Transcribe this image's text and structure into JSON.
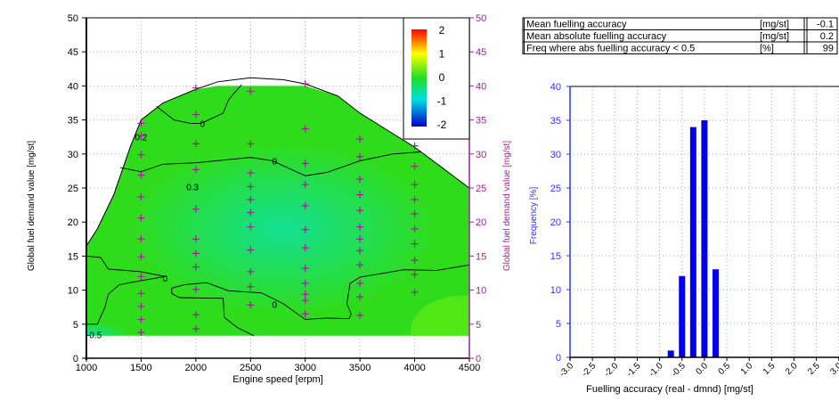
{
  "stats_table": {
    "rows": [
      {
        "label": "Mean fuelling accuracy",
        "unit": "[mg/st]",
        "value": "-0.1"
      },
      {
        "label": "Mean absolute fuelling accuracy",
        "unit": "[mg/st]",
        "value": "0.2"
      },
      {
        "label": "Freq where abs fuelling accuracy < 0.5",
        "unit": "[%]",
        "value": "99"
      }
    ]
  },
  "chart_data": [
    {
      "type": "heatmap",
      "xlabel": "Engine speed [erpm]",
      "ylabel": "Global fuel demand value [mg/st]",
      "ylabel_right": "Global fuel demand value [mg/st]",
      "xlim": [
        1000,
        4500
      ],
      "ylim": [
        0,
        50
      ],
      "xticks": [
        "1000",
        "1500",
        "2000",
        "2500",
        "3000",
        "3500",
        "4000",
        "4500"
      ],
      "yticks": [
        "0",
        "5",
        "10",
        "15",
        "20",
        "25",
        "30",
        "35",
        "40",
        "45",
        "50"
      ],
      "grid": true,
      "colorbar": {
        "ticks": [
          "2",
          "1",
          "0",
          "-1",
          "-2"
        ],
        "range": [
          -2,
          2
        ],
        "placement": "top-right"
      },
      "colors": {
        "right_axis": "#a0209a",
        "marker": "#a0209a",
        "fill": "#2fdc1c",
        "low": "#10e0a0"
      },
      "envelope": [
        [
          1000,
          16.5
        ],
        [
          1100,
          19
        ],
        [
          1250,
          24
        ],
        [
          1400,
          31
        ],
        [
          1500,
          35
        ],
        [
          1700,
          37.5
        ],
        [
          2000,
          39.5
        ],
        [
          2200,
          40.6
        ],
        [
          2500,
          41.2
        ],
        [
          2800,
          40.9
        ],
        [
          3000,
          40.3
        ],
        [
          3300,
          38.5
        ],
        [
          3500,
          36
        ],
        [
          3800,
          33
        ],
        [
          4000,
          31
        ],
        [
          4250,
          28
        ],
        [
          4500,
          25
        ]
      ],
      "data_top": 40,
      "data_bottom": 3.3,
      "contours": [
        {
          "label": "0",
          "points": [
            [
              1640,
              37
            ],
            [
              1800,
              35
            ],
            [
              1950,
              34.5
            ],
            [
              2050,
              34.5
            ],
            [
              2250,
              36
            ],
            [
              2300,
              38
            ],
            [
              2420,
              40.2
            ]
          ]
        },
        {
          "label": "0",
          "points": [
            [
              1310,
              28
            ],
            [
              1500,
              27.4
            ],
            [
              1700,
              28.5
            ],
            [
              2000,
              28.7
            ],
            [
              2500,
              29.5
            ],
            [
              2700,
              29
            ],
            [
              3000,
              26.8
            ],
            [
              3200,
              27.3
            ],
            [
              3500,
              29
            ],
            [
              3800,
              30
            ],
            [
              4050,
              30.3
            ]
          ]
        },
        {
          "label": "0",
          "points": [
            [
              1000,
              15
            ],
            [
              1130,
              14.8
            ],
            [
              1200,
              13.1
            ],
            [
              1500,
              12.7
            ],
            [
              1720,
              12
            ],
            [
              1500,
              11.4
            ],
            [
              1300,
              10.8
            ],
            [
              1200,
              9.4
            ],
            [
              1170,
              7.5
            ],
            [
              1100,
              5
            ],
            [
              1000,
              5
            ]
          ]
        },
        {
          "label": "0",
          "points": [
            [
              1780,
              10.3
            ],
            [
              1900,
              10.8
            ],
            [
              2100,
              11.1
            ],
            [
              2300,
              9.9
            ],
            [
              2600,
              9.6
            ],
            [
              2800,
              8
            ],
            [
              3000,
              5.7
            ],
            [
              3200,
              5.9
            ],
            [
              3400,
              5.8
            ],
            [
              3420,
              6.5
            ],
            [
              3380,
              8
            ],
            [
              3410,
              11
            ],
            [
              3500,
              11.9
            ],
            [
              3900,
              13
            ],
            [
              4200,
              12.9
            ],
            [
              4500,
              13.7
            ]
          ]
        },
        {
          "label": "",
          "points": [
            [
              1780,
              10.3
            ],
            [
              1780,
              9.5
            ],
            [
              1850,
              8.9
            ],
            [
              2250,
              8.8
            ],
            [
              2260,
              6
            ],
            [
              2380,
              4.5
            ],
            [
              2530,
              3.3
            ]
          ]
        }
      ],
      "contour_labels": [
        {
          "text": "0",
          "x": 2060,
          "y": 34.5
        },
        {
          "text": "0.2",
          "x": 1500,
          "y": 32.5
        },
        {
          "text": "0",
          "x": 2720,
          "y": 29
        },
        {
          "text": "0.3",
          "x": 1970,
          "y": 25.2
        },
        {
          "text": "0",
          "x": 1720,
          "y": 11.8
        },
        {
          "text": "0",
          "x": 2720,
          "y": 7.9
        },
        {
          "text": "-0.5",
          "x": 1070,
          "y": 3.5
        }
      ],
      "points": [
        [
          1500,
          34.5
        ],
        [
          1500,
          32.7
        ],
        [
          1500,
          29.9
        ],
        [
          1500,
          26.9
        ],
        [
          1500,
          23.7
        ],
        [
          1500,
          20.6
        ],
        [
          1500,
          17.5
        ],
        [
          1500,
          14.9
        ],
        [
          1500,
          12.0
        ],
        [
          1500,
          9.5
        ],
        [
          1500,
          7.6
        ],
        [
          1500,
          5.7
        ],
        [
          1500,
          3.8
        ],
        [
          2000,
          39.7
        ],
        [
          2000,
          35.8
        ],
        [
          2000,
          31.5
        ],
        [
          2000,
          27.7
        ],
        [
          2000,
          21.9
        ],
        [
          2000,
          17.5
        ],
        [
          2000,
          15.4
        ],
        [
          2000,
          13.4
        ],
        [
          2000,
          10.1
        ],
        [
          2000,
          6.4
        ],
        [
          2000,
          4.3
        ],
        [
          2500,
          39.2
        ],
        [
          2500,
          31.5
        ],
        [
          2500,
          27.2
        ],
        [
          2500,
          25.2
        ],
        [
          2500,
          23.3
        ],
        [
          2500,
          21.4
        ],
        [
          2500,
          19.3
        ],
        [
          2500,
          15.9
        ],
        [
          2500,
          12.7
        ],
        [
          2500,
          10.5
        ],
        [
          2500,
          7.8
        ],
        [
          3000,
          40.3
        ],
        [
          3000,
          33.7
        ],
        [
          3000,
          28.6
        ],
        [
          3000,
          25.5
        ],
        [
          3000,
          22.4
        ],
        [
          3000,
          18.9
        ],
        [
          3000,
          16.2
        ],
        [
          3000,
          13.2
        ],
        [
          3000,
          11.0
        ],
        [
          3000,
          9.4
        ],
        [
          3000,
          8.5
        ],
        [
          3000,
          6.5
        ],
        [
          3500,
          32.2
        ],
        [
          3500,
          29.6
        ],
        [
          3500,
          26.3
        ],
        [
          3500,
          24.0
        ],
        [
          3500,
          21.7
        ],
        [
          3500,
          19.3
        ],
        [
          3500,
          17.5
        ],
        [
          3500,
          15.8
        ],
        [
          3500,
          13.7
        ],
        [
          3500,
          11.0
        ],
        [
          3500,
          9.0
        ],
        [
          3500,
          6.3
        ],
        [
          4000,
          31.2
        ],
        [
          4000,
          28.2
        ],
        [
          4000,
          25.5
        ],
        [
          4000,
          23.3
        ],
        [
          4000,
          21.2
        ],
        [
          4000,
          19.0
        ],
        [
          4000,
          16.8
        ],
        [
          4000,
          14.4
        ],
        [
          4000,
          12.3
        ],
        [
          4000,
          9.7
        ]
      ]
    },
    {
      "type": "bar",
      "xlabel": "Fuelling accuracy (real - dmnd) [mg/st]",
      "ylabel": "Frequency [%]",
      "xlim": [
        -3.0,
        3.0
      ],
      "ylim": [
        0,
        40
      ],
      "xticks": [
        "-3.0",
        "-2.5",
        "-2.0",
        "-1.5",
        "-1.0",
        "-0.5",
        "0.0",
        "0.5",
        "1.0",
        "1.5",
        "2.0",
        "2.5",
        "3.0"
      ],
      "yticks": [
        "0",
        "5",
        "10",
        "15",
        "20",
        "25",
        "30",
        "35",
        "40"
      ],
      "grid": true,
      "colors": {
        "bar": "#0000ee",
        "axis": "#3030ff"
      },
      "x": [
        -0.75,
        -0.5,
        -0.25,
        0.0,
        0.25
      ],
      "values": [
        1,
        12,
        34,
        35,
        13
      ]
    }
  ]
}
